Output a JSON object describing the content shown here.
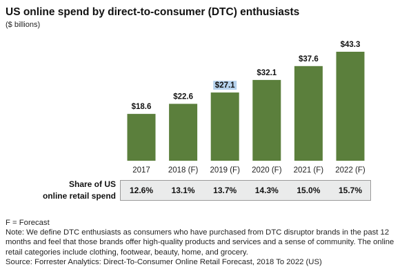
{
  "chart_data": {
    "type": "bar",
    "title": "US online spend by direct-to-consumer (DTC) enthusiasts",
    "subtitle": "($ billions)",
    "categories": [
      "2017",
      "2018 (F)",
      "2019 (F)",
      "2020 (F)",
      "2021 (F)",
      "2022 (F)"
    ],
    "values": [
      18.6,
      22.6,
      27.1,
      32.1,
      37.6,
      43.3
    ],
    "value_labels": [
      "$18.6",
      "$22.6",
      "$27.1",
      "$32.1",
      "$37.6",
      "$43.3"
    ],
    "ylim": [
      0,
      43.3
    ],
    "bar_color": "#5b7f3c",
    "highlight_color": "#b7d3ee",
    "highlighted_label_index": 2,
    "grid": false,
    "legend": "none"
  },
  "share_table": {
    "label_line1": "Share of US",
    "label_line2": "online retail spend",
    "values": [
      "12.6%",
      "13.1%",
      "13.7%",
      "14.3%",
      "15.0%",
      "15.7%"
    ]
  },
  "notes": {
    "forecast": "F = Forecast",
    "note": "Note: We define DTC enthusiasts as consumers who have purchased from DTC disruptor brands in the past 12 months and feel that those brands offer high-quality products and services and a sense of community. The online retail categories include clothing, footwear, beauty, home, and grocery.",
    "source": "Source: Forrester Analytics: Direct-To-Consumer Online Retail Forecast, 2018 To 2022 (US)"
  }
}
